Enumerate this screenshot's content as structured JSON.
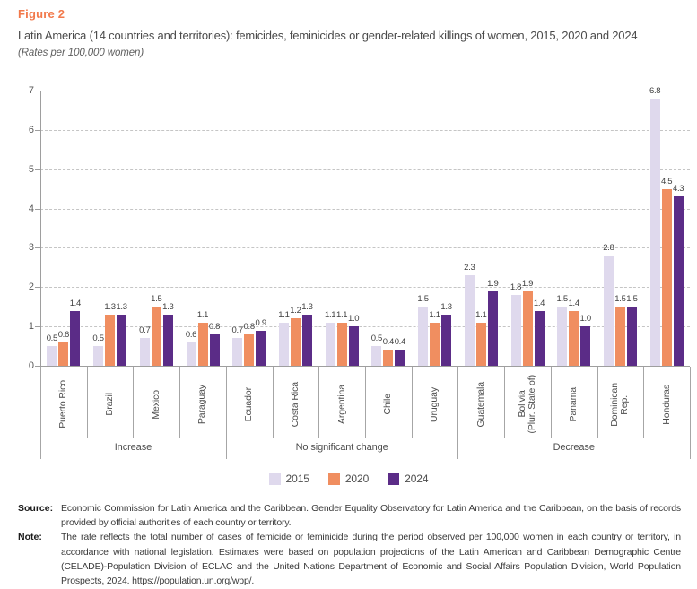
{
  "figure": {
    "label": "Figure 2",
    "title": "Latin America (14 countries and territories): femicides, feminicides or gender-related killings of women, 2015, 2020 and 2024",
    "unit_note": "(Rates per 100,000 women)"
  },
  "chart_data": {
    "type": "bar",
    "title": "Latin America (14 countries and territories): femicides, feminicides or gender-related killings of women, 2015, 2020 and 2024",
    "xlabel": "",
    "ylabel": "Rates per 100,000 women",
    "ylim": [
      0,
      7
    ],
    "yticks": [
      0,
      1,
      2,
      3,
      4,
      5,
      6,
      7
    ],
    "grid": "horizontal-dashed",
    "legend_position": "bottom",
    "categories": [
      "Puerto Rico",
      "Brazil",
      "Mexico",
      "Paraguay",
      "Ecuador",
      "Costa Rica",
      "Argentina",
      "Chile",
      "Uruguay",
      "Guatemala",
      "Bolivia\n(Plur. State of)",
      "Panama",
      "Dominican\nRep.",
      "Honduras"
    ],
    "series": [
      {
        "name": "2015",
        "color": "#DFD9ED",
        "values": [
          0.5,
          0.5,
          0.7,
          0.6,
          0.7,
          1.1,
          1.1,
          0.5,
          1.5,
          2.3,
          1.8,
          1.5,
          2.8,
          6.8
        ]
      },
      {
        "name": "2020",
        "color": "#F08E60",
        "values": [
          0.6,
          1.3,
          1.5,
          1.1,
          0.8,
          1.2,
          1.1,
          0.4,
          1.1,
          1.1,
          1.9,
          1.4,
          1.5,
          4.5
        ]
      },
      {
        "name": "2024",
        "color": "#5B2C87",
        "values": [
          1.4,
          1.3,
          1.3,
          0.8,
          0.9,
          1.3,
          1.0,
          0.4,
          1.3,
          1.9,
          1.4,
          1.0,
          1.5,
          4.3
        ]
      }
    ],
    "groups": [
      {
        "label": "Increase",
        "span": [
          0,
          3
        ]
      },
      {
        "label": "No significant change",
        "span": [
          4,
          8
        ]
      },
      {
        "label": "Decrease",
        "span": [
          9,
          13
        ]
      }
    ]
  },
  "source": {
    "label": "Source:",
    "text": "Economic Commission for Latin America and the Caribbean. Gender Equality Observatory for Latin America and the Caribbean, on the basis of records provided by official authorities of each country or territory."
  },
  "note": {
    "label": "Note:",
    "text": "The rate reflects the total number of cases of femicide or feminicide during the period observed per 100,000 women in each country or territory, in accordance with national legislation. Estimates were based on population projections of the Latin American and Caribbean Demographic Centre (CELADE)-Population Division of ECLAC and the United Nations Department of Economic and Social Affairs Population Division, World Population Prospects, 2024. https://population.un.org/wpp/."
  }
}
